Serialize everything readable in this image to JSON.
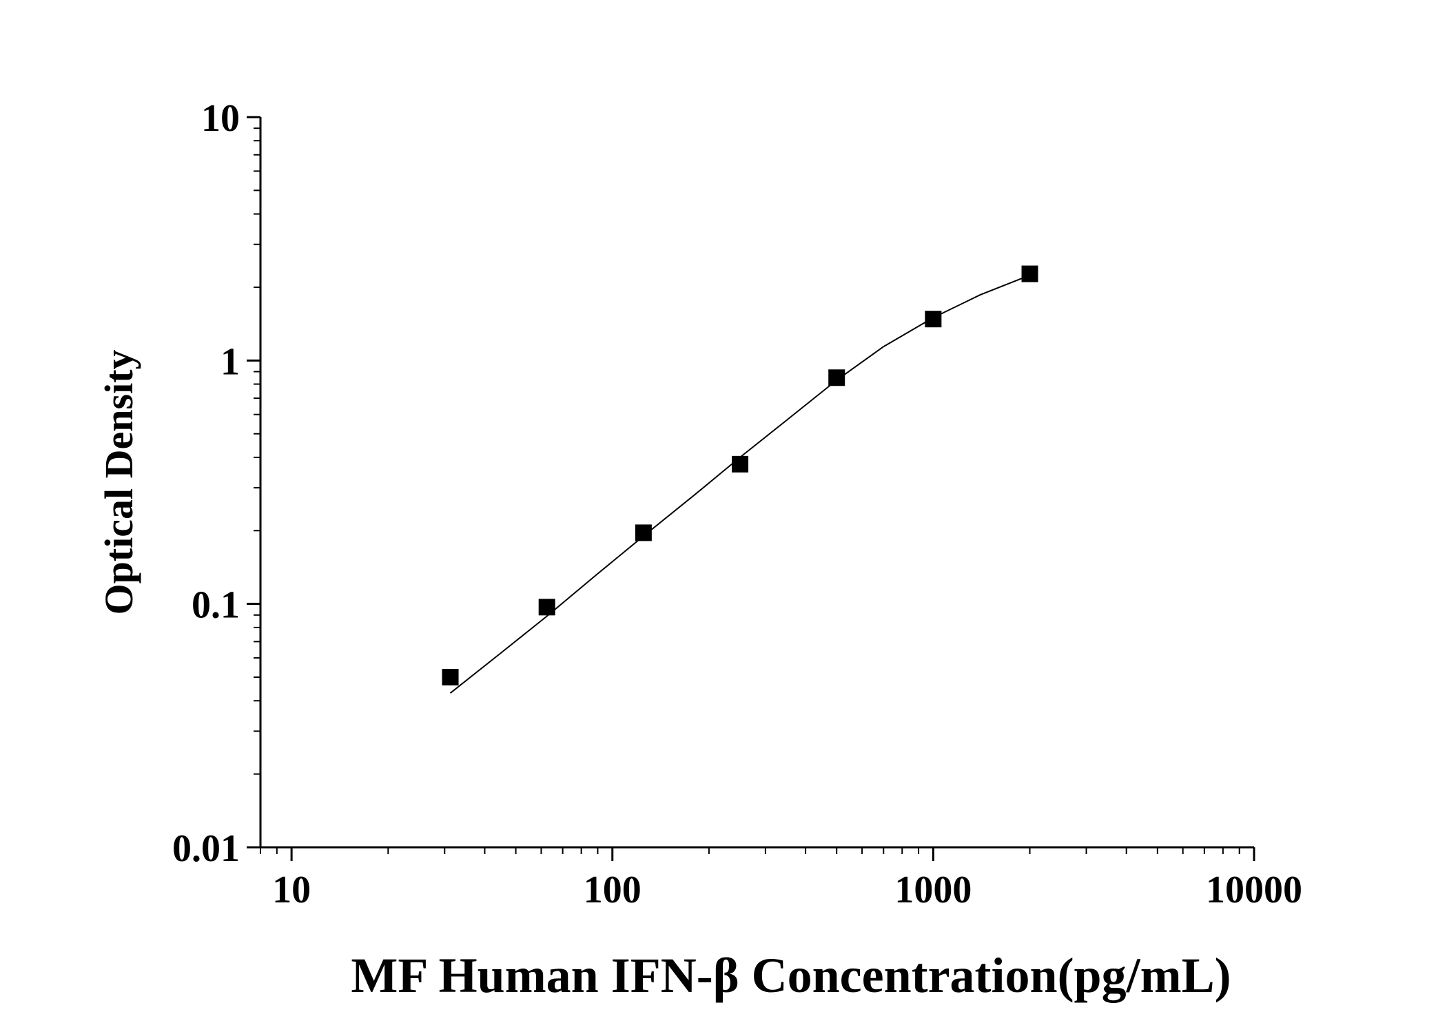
{
  "chart_data": {
    "type": "scatter",
    "xlabel": "MF Human IFN-β Concentration(pg/mL)",
    "ylabel": "Optical Density",
    "x_scale": "log",
    "y_scale": "log",
    "xlim": [
      8,
      10000
    ],
    "ylim": [
      0.01,
      10
    ],
    "x_ticks": [
      10,
      100,
      1000,
      10000
    ],
    "x_tick_labels": [
      "10",
      "100",
      "1000",
      "10000"
    ],
    "y_ticks": [
      0.01,
      0.1,
      1,
      10
    ],
    "y_tick_labels": [
      "0.01",
      "0.1",
      "1",
      "10"
    ],
    "grid": false,
    "legend": "none",
    "series": [
      {
        "marker": "square",
        "x": [
          31.25,
          62.5,
          125,
          250,
          500,
          1000,
          2000
        ],
        "y": [
          0.05,
          0.097,
          0.196,
          0.375,
          0.85,
          1.48,
          2.27
        ]
      }
    ],
    "fit_curve": {
      "x": [
        31.25,
        45,
        62.5,
        90,
        125,
        180,
        250,
        350,
        500,
        700,
        1000,
        1400,
        2000
      ],
      "y": [
        0.043,
        0.063,
        0.089,
        0.133,
        0.19,
        0.28,
        0.4,
        0.57,
        0.83,
        1.14,
        1.5,
        1.86,
        2.24
      ]
    },
    "colors": {
      "axis": "#000000",
      "marker": "#000000",
      "curve": "#000000",
      "background": "#ffffff"
    }
  }
}
